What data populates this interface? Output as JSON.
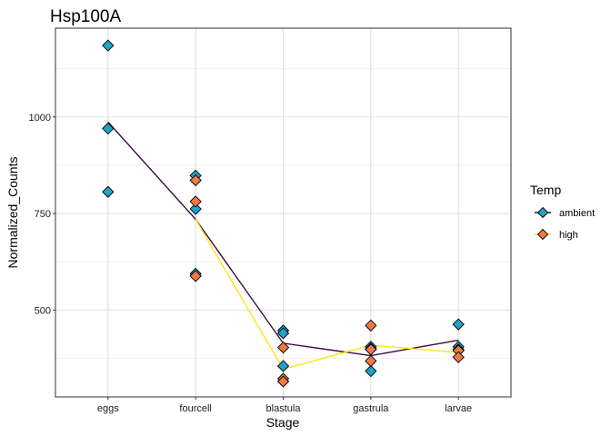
{
  "chart_data": {
    "type": "scatter",
    "title": "Hsp100A",
    "xlabel": "Stage",
    "ylabel": "Normalized_Counts",
    "categories": [
      "eggs",
      "fourcell",
      "blastula",
      "gastrula",
      "larvae"
    ],
    "yticks": [
      500,
      750,
      1000
    ],
    "ylim": [
      275,
      1230
    ],
    "grid": true,
    "legend": {
      "title": "Temp",
      "position": "right",
      "entries": [
        "ambient",
        "high"
      ]
    },
    "series": [
      {
        "name": "ambient",
        "color": "#1fa3c9",
        "line_color": "#3b0a45",
        "points": [
          {
            "x": "eggs",
            "y": 1185
          },
          {
            "x": "eggs",
            "y": 970
          },
          {
            "x": "eggs",
            "y": 806
          },
          {
            "x": "fourcell",
            "y": 848
          },
          {
            "x": "fourcell",
            "y": 762
          },
          {
            "x": "fourcell",
            "y": 594
          },
          {
            "x": "blastula",
            "y": 447
          },
          {
            "x": "blastula",
            "y": 440
          },
          {
            "x": "blastula",
            "y": 355
          },
          {
            "x": "gastrula",
            "y": 405
          },
          {
            "x": "gastrula",
            "y": 400
          },
          {
            "x": "gastrula",
            "y": 342
          },
          {
            "x": "larvae",
            "y": 463
          },
          {
            "x": "larvae",
            "y": 405
          },
          {
            "x": "larvae",
            "y": 398
          }
        ],
        "mean_line": [
          {
            "x": "eggs",
            "y": 987
          },
          {
            "x": "fourcell",
            "y": 735
          },
          {
            "x": "blastula",
            "y": 414
          },
          {
            "x": "gastrula",
            "y": 382
          },
          {
            "x": "larvae",
            "y": 422
          }
        ]
      },
      {
        "name": "high",
        "color": "#f07845",
        "line_color": "#ffe417",
        "points": [
          {
            "x": "fourcell",
            "y": 836
          },
          {
            "x": "fourcell",
            "y": 781
          },
          {
            "x": "fourcell",
            "y": 588
          },
          {
            "x": "blastula",
            "y": 403
          },
          {
            "x": "blastula",
            "y": 322
          },
          {
            "x": "blastula",
            "y": 315
          },
          {
            "x": "gastrula",
            "y": 460
          },
          {
            "x": "gastrula",
            "y": 398
          },
          {
            "x": "gastrula",
            "y": 368
          },
          {
            "x": "larvae",
            "y": 395
          },
          {
            "x": "larvae",
            "y": 378
          }
        ],
        "mean_line": [
          {
            "x": "fourcell",
            "y": 735
          },
          {
            "x": "blastula",
            "y": 347
          },
          {
            "x": "gastrula",
            "y": 409
          },
          {
            "x": "larvae",
            "y": 390
          }
        ]
      }
    ]
  }
}
